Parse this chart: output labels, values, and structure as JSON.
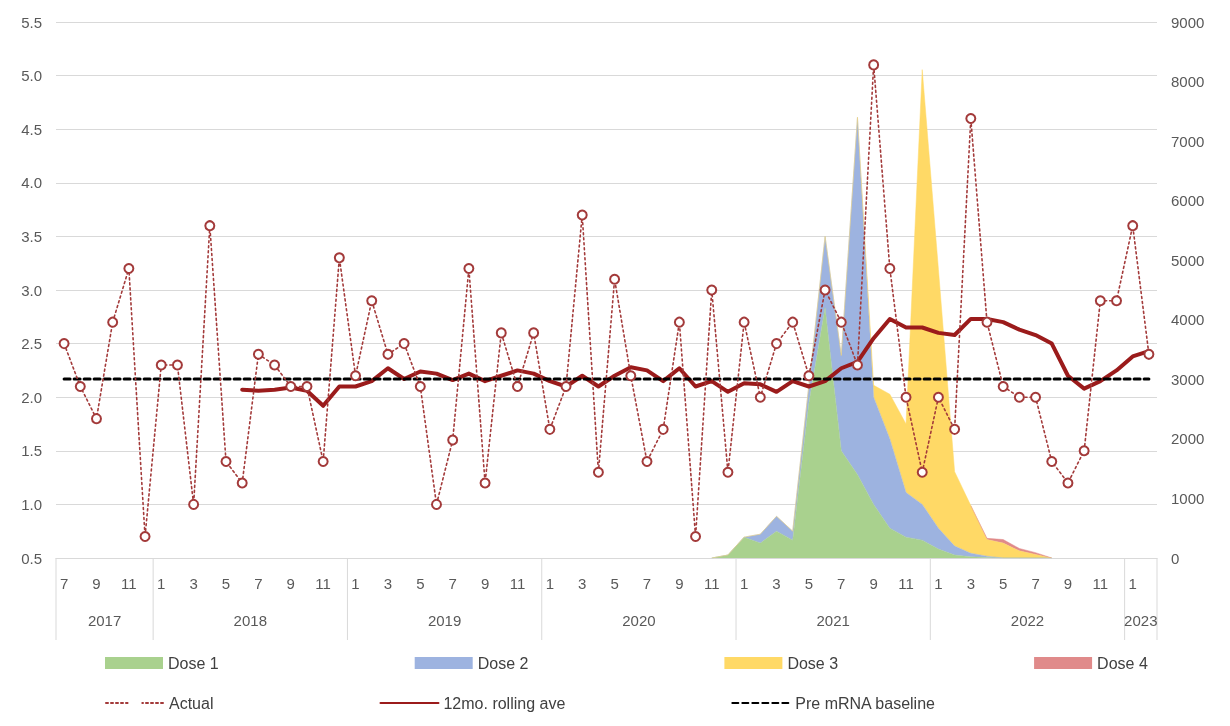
{
  "chart_data": {
    "type": "line",
    "categories": [
      "7",
      null,
      "9",
      null,
      "11",
      null,
      "1",
      null,
      "3",
      null,
      "5",
      null,
      "7",
      null,
      "9",
      null,
      "11",
      null,
      "1",
      null,
      "3",
      null,
      "5",
      null,
      "7",
      null,
      "9",
      null,
      "11",
      null,
      "1",
      null,
      "3",
      null,
      "5",
      null,
      "7",
      null,
      "9",
      null,
      "11",
      null,
      "1",
      null,
      "3",
      null,
      "5",
      null,
      "7",
      null,
      "9",
      null,
      "11",
      null,
      "1",
      null,
      "3",
      null,
      "5",
      null,
      "7",
      null,
      "9",
      null,
      "11",
      null,
      "1",
      null
    ],
    "annotations": [
      "2017",
      "2018",
      "2019",
      "2020",
      "2021",
      "2022",
      "2023"
    ],
    "stacked": true,
    "series": [
      {
        "name": "Dose 1",
        "type": "area",
        "axis": "y2",
        "color": "#a9d18e",
        "values": [
          null,
          null,
          null,
          null,
          null,
          null,
          null,
          null,
          null,
          null,
          null,
          null,
          null,
          null,
          null,
          null,
          null,
          null,
          null,
          null,
          null,
          null,
          null,
          null,
          null,
          null,
          null,
          null,
          null,
          null,
          null,
          null,
          null,
          null,
          null,
          null,
          null,
          null,
          null,
          null,
          0,
          50,
          350,
          250,
          450,
          300,
          2600,
          4200,
          1800,
          1400,
          900,
          500,
          350,
          300,
          150,
          50,
          20,
          10,
          0,
          0,
          0,
          0,
          null,
          null,
          null,
          null,
          null,
          null
        ]
      },
      {
        "name": "Dose 2",
        "type": "area",
        "axis": "y2",
        "color": "#9db3e0",
        "values": [
          null,
          null,
          null,
          null,
          null,
          null,
          null,
          null,
          null,
          null,
          null,
          null,
          null,
          null,
          null,
          null,
          null,
          null,
          null,
          null,
          null,
          null,
          null,
          null,
          null,
          null,
          null,
          null,
          null,
          null,
          null,
          null,
          null,
          null,
          null,
          null,
          null,
          null,
          null,
          null,
          0,
          0,
          0,
          150,
          250,
          150,
          300,
          1200,
          1600,
          6000,
          1800,
          1500,
          750,
          600,
          350,
          150,
          60,
          20,
          0,
          0,
          0,
          0,
          null,
          null,
          null,
          null,
          null,
          null
        ]
      },
      {
        "name": "Dose 3",
        "type": "area",
        "axis": "y2",
        "color": "#ffd966",
        "values": [
          null,
          null,
          null,
          null,
          null,
          null,
          null,
          null,
          null,
          null,
          null,
          null,
          null,
          null,
          null,
          null,
          null,
          null,
          null,
          null,
          null,
          null,
          null,
          null,
          null,
          null,
          null,
          null,
          null,
          null,
          null,
          null,
          null,
          null,
          null,
          null,
          null,
          null,
          null,
          null,
          0,
          0,
          0,
          0,
          0,
          0,
          0,
          0,
          0,
          0,
          200,
          750,
          1150,
          7300,
          4350,
          1250,
          800,
          280,
          250,
          120,
          60,
          0,
          null,
          null,
          null,
          null,
          null,
          null
        ]
      },
      {
        "name": "Dose 4",
        "type": "area",
        "axis": "y2",
        "color": "#e08a8a",
        "values": [
          null,
          null,
          null,
          null,
          null,
          null,
          null,
          null,
          null,
          null,
          null,
          null,
          null,
          null,
          null,
          null,
          null,
          null,
          null,
          null,
          null,
          null,
          null,
          null,
          null,
          null,
          null,
          null,
          null,
          null,
          null,
          null,
          null,
          null,
          null,
          null,
          null,
          null,
          null,
          null,
          null,
          null,
          null,
          null,
          null,
          null,
          null,
          null,
          null,
          null,
          null,
          null,
          null,
          null,
          null,
          null,
          0,
          20,
          60,
          40,
          30,
          0,
          null,
          null,
          null,
          null,
          null,
          null
        ]
      },
      {
        "name": "Actual",
        "color": "#a33a3a",
        "marker": "circle",
        "line_style": "dotted",
        "values": [
          2.5,
          2.1,
          1.8,
          2.7,
          3.2,
          0.7,
          2.3,
          2.3,
          1.0,
          3.6,
          1.4,
          1.2,
          2.4,
          2.3,
          2.1,
          2.1,
          1.4,
          3.3,
          2.2,
          2.9,
          2.4,
          2.5,
          2.1,
          1.0,
          1.6,
          3.2,
          1.2,
          2.6,
          2.1,
          2.6,
          1.7,
          2.1,
          3.7,
          1.3,
          3.1,
          2.2,
          1.4,
          1.7,
          2.7,
          0.7,
          3.0,
          1.3,
          2.7,
          2.0,
          2.5,
          2.7,
          2.2,
          3.0,
          2.7,
          2.3,
          5.1,
          3.2,
          2.0,
          1.3,
          2.0,
          1.7,
          4.6,
          2.7,
          2.1,
          2.0,
          2.0,
          1.4,
          1.2,
          1.5,
          2.9,
          2.9,
          3.6,
          2.4
        ]
      },
      {
        "name": "12mo. rolling ave",
        "color": "#9b1b1b",
        "marker": "none",
        "line_style": "solid",
        "values": [
          null,
          null,
          null,
          null,
          null,
          null,
          null,
          null,
          null,
          null,
          null,
          2.07,
          2.06,
          2.07,
          2.09,
          2.06,
          1.92,
          2.1,
          2.1,
          2.15,
          2.27,
          2.17,
          2.24,
          2.22,
          2.16,
          2.22,
          2.15,
          2.2,
          2.25,
          2.22,
          2.15,
          2.1,
          2.2,
          2.1,
          2.2,
          2.28,
          2.25,
          2.15,
          2.27,
          2.1,
          2.15,
          2.05,
          2.13,
          2.12,
          2.05,
          2.15,
          2.1,
          2.15,
          2.27,
          2.33,
          2.55,
          2.73,
          2.65,
          2.65,
          2.6,
          2.58,
          2.73,
          2.73,
          2.7,
          2.63,
          2.58,
          2.5,
          2.2,
          2.08,
          2.15,
          2.25,
          2.38,
          2.43
        ]
      },
      {
        "name": "Pre mRNA baseline",
        "color": "#000000",
        "marker": "none",
        "line_style": "dashed",
        "values": [
          2.17,
          2.17,
          2.17,
          2.17,
          2.17,
          2.17,
          2.17,
          2.17,
          2.17,
          2.17,
          2.17,
          2.17,
          2.17,
          2.17,
          2.17,
          2.17,
          2.17,
          2.17,
          2.17,
          2.17,
          2.17,
          2.17,
          2.17,
          2.17,
          2.17,
          2.17,
          2.17,
          2.17,
          2.17,
          2.17,
          2.17,
          2.17,
          2.17,
          2.17,
          2.17,
          2.17,
          2.17,
          2.17,
          2.17,
          2.17,
          2.17,
          2.17,
          2.17,
          2.17,
          2.17,
          2.17,
          2.17,
          2.17,
          2.17,
          2.17,
          2.17,
          2.17,
          2.17,
          2.17,
          2.17,
          2.17,
          2.17,
          2.17,
          2.17,
          2.17,
          2.17,
          2.17,
          2.17,
          2.17,
          2.17,
          2.17,
          2.17,
          2.17
        ]
      }
    ],
    "ylim": [
      0.5,
      5.5
    ],
    "yticks": [
      {
        "value": 0.5,
        "label": "0.5"
      },
      {
        "value": 1,
        "label": "1.0"
      },
      {
        "value": 1.5,
        "label": "1.5"
      },
      {
        "value": 2,
        "label": "2.0"
      },
      {
        "value": 2.5,
        "label": "2.5"
      },
      {
        "value": 3,
        "label": "3.0"
      },
      {
        "value": 3.5,
        "label": "3.5"
      },
      {
        "value": 4,
        "label": "4.0"
      },
      {
        "value": 4.5,
        "label": "4.5"
      },
      {
        "value": 5,
        "label": "5.0"
      },
      {
        "value": 5.5,
        "label": "5.5"
      }
    ],
    "y2lim": [
      0,
      9000
    ],
    "y2ticks": [
      0,
      1000,
      2000,
      3000,
      4000,
      5000,
      6000,
      7000,
      8000,
      9000
    ],
    "grid": "y",
    "legend": "bottom"
  }
}
